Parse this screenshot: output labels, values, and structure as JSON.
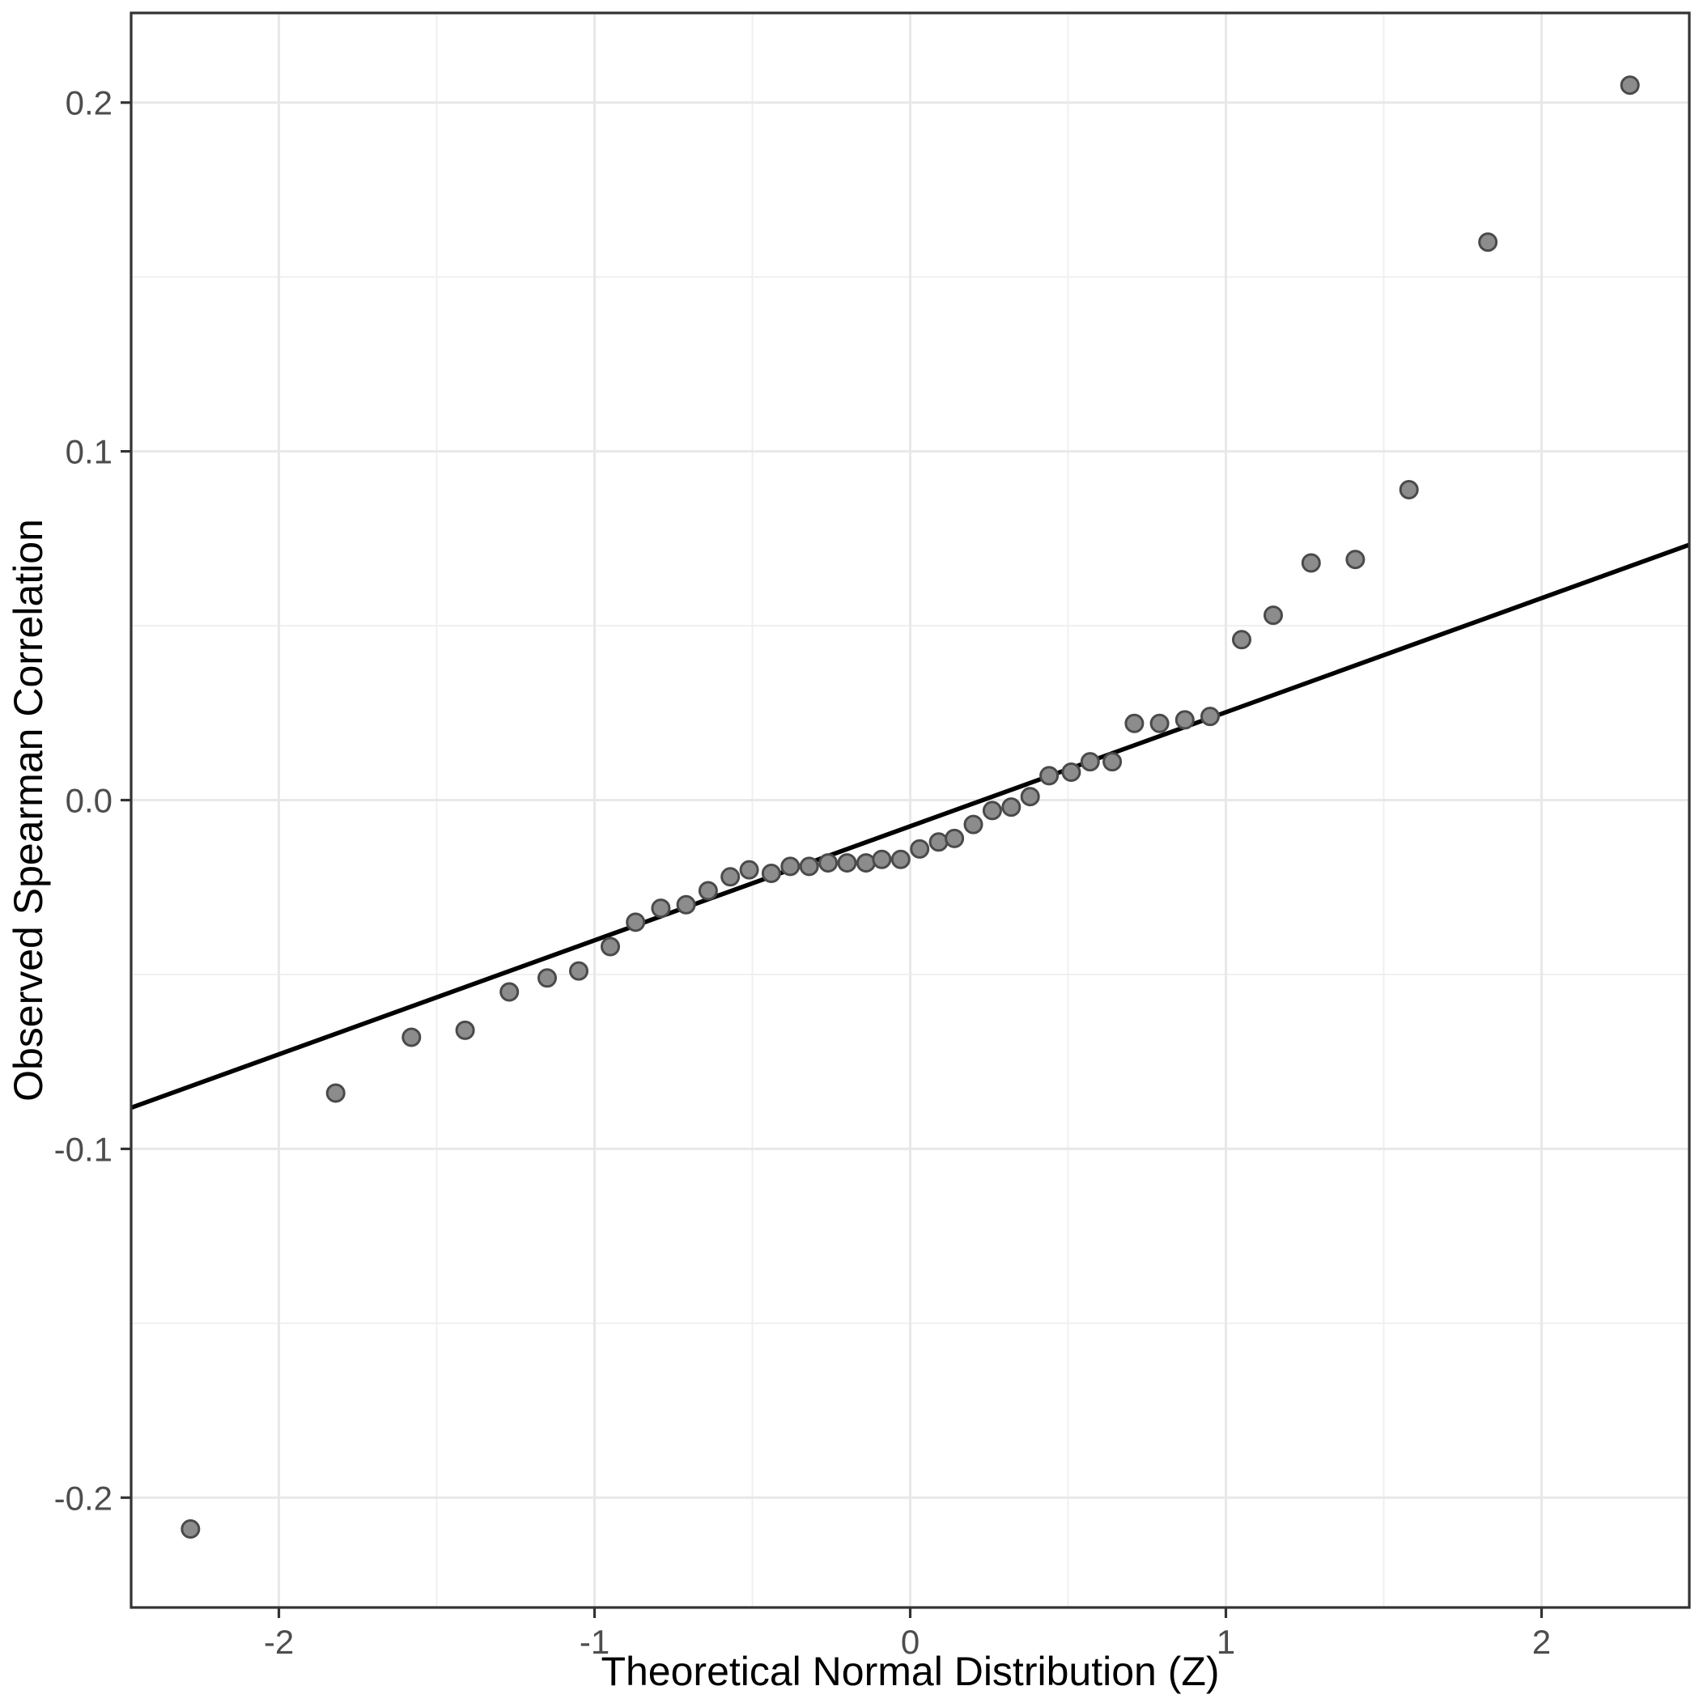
{
  "chart_data": {
    "type": "scatter",
    "title": "",
    "xlabel": "Theoretical Normal Distribution (Z)",
    "ylabel": "Observed Spearman Correlation",
    "xlim": [
      -2.468,
      2.468
    ],
    "ylim": [
      -0.2315,
      0.2257
    ],
    "x_ticks": [
      -2,
      -1,
      0,
      1,
      2
    ],
    "y_ticks": [
      -0.2,
      -0.1,
      0.0,
      0.1,
      0.2
    ],
    "x_minor_gridlines": [
      -1.5,
      -0.5,
      0.5,
      1.5
    ],
    "y_minor_gridlines": [
      -0.15,
      -0.05,
      0.05,
      0.15
    ],
    "grid": true,
    "legend_position": "none",
    "reference_line": {
      "slope": 0.0327,
      "intercept": -0.0075
    },
    "points": [
      {
        "x": -2.28,
        "y": -0.209
      },
      {
        "x": -1.82,
        "y": -0.084
      },
      {
        "x": -1.58,
        "y": -0.068
      },
      {
        "x": -1.41,
        "y": -0.066
      },
      {
        "x": -1.27,
        "y": -0.055
      },
      {
        "x": -1.15,
        "y": -0.051
      },
      {
        "x": -1.05,
        "y": -0.049
      },
      {
        "x": -0.95,
        "y": -0.042
      },
      {
        "x": -0.87,
        "y": -0.035
      },
      {
        "x": -0.79,
        "y": -0.031
      },
      {
        "x": -0.71,
        "y": -0.03
      },
      {
        "x": -0.64,
        "y": -0.026
      },
      {
        "x": -0.57,
        "y": -0.022
      },
      {
        "x": -0.51,
        "y": -0.02
      },
      {
        "x": -0.44,
        "y": -0.021
      },
      {
        "x": -0.38,
        "y": -0.019
      },
      {
        "x": -0.32,
        "y": -0.019
      },
      {
        "x": -0.26,
        "y": -0.018
      },
      {
        "x": -0.2,
        "y": -0.018
      },
      {
        "x": -0.14,
        "y": -0.018
      },
      {
        "x": -0.09,
        "y": -0.017
      },
      {
        "x": -0.03,
        "y": -0.017
      },
      {
        "x": 0.03,
        "y": -0.014
      },
      {
        "x": 0.09,
        "y": -0.012
      },
      {
        "x": 0.14,
        "y": -0.011
      },
      {
        "x": 0.2,
        "y": -0.007
      },
      {
        "x": 0.26,
        "y": -0.003
      },
      {
        "x": 0.32,
        "y": -0.002
      },
      {
        "x": 0.38,
        "y": 0.001
      },
      {
        "x": 0.44,
        "y": 0.007
      },
      {
        "x": 0.51,
        "y": 0.008
      },
      {
        "x": 0.57,
        "y": 0.011
      },
      {
        "x": 0.64,
        "y": 0.011
      },
      {
        "x": 0.71,
        "y": 0.022
      },
      {
        "x": 0.79,
        "y": 0.022
      },
      {
        "x": 0.87,
        "y": 0.023
      },
      {
        "x": 0.95,
        "y": 0.024
      },
      {
        "x": 1.05,
        "y": 0.046
      },
      {
        "x": 1.15,
        "y": 0.053
      },
      {
        "x": 1.27,
        "y": 0.068
      },
      {
        "x": 1.41,
        "y": 0.069
      },
      {
        "x": 1.58,
        "y": 0.089
      },
      {
        "x": 1.83,
        "y": 0.16
      },
      {
        "x": 2.28,
        "y": 0.205
      }
    ],
    "colors": {
      "point_fill": "#8c8c8c",
      "point_stroke": "#4a4a4a",
      "reference_line": "#000000",
      "grid_major": "#e8e8e8",
      "grid_minor": "#efefef",
      "panel_border": "#333333",
      "tick_mark": "#333333",
      "axis_text": "#4d4d4d",
      "axis_title": "#000000",
      "background": "#ffffff"
    }
  }
}
